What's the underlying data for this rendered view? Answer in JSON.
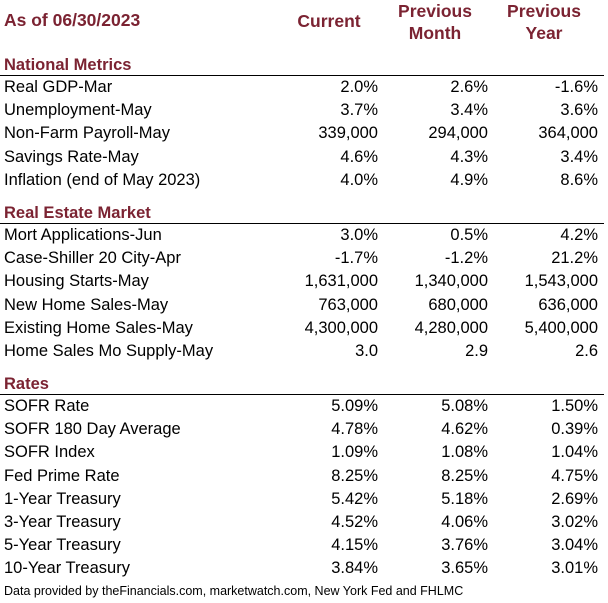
{
  "header": {
    "title": "As of 06/30/2023",
    "col_current": "Current",
    "col_prev_month": "Previous\nMonth",
    "col_prev_year": "Previous\nYear"
  },
  "sections": [
    {
      "title": "National Metrics",
      "rows": [
        {
          "label": "Real GDP-Mar",
          "current": "2.0%",
          "prev_month": "2.6%",
          "prev_year": "-1.6%"
        },
        {
          "label": "Unemployment-May",
          "current": "3.7%",
          "prev_month": "3.4%",
          "prev_year": "3.6%"
        },
        {
          "label": "Non-Farm Payroll-May",
          "current": "339,000",
          "prev_month": "294,000",
          "prev_year": "364,000"
        },
        {
          "label": "Savings Rate-May",
          "current": "4.6%",
          "prev_month": "4.3%",
          "prev_year": "3.4%"
        },
        {
          "label": "Inflation (end of May 2023)",
          "current": "4.0%",
          "prev_month": "4.9%",
          "prev_year": "8.6%"
        }
      ]
    },
    {
      "title": "Real Estate Market",
      "rows": [
        {
          "label": "Mort Applications-Jun",
          "current": "3.0%",
          "prev_month": "0.5%",
          "prev_year": "4.2%"
        },
        {
          "label": "Case-Shiller 20 City-Apr",
          "current": "-1.7%",
          "prev_month": "-1.2%",
          "prev_year": "21.2%"
        },
        {
          "label": "Housing Starts-May",
          "current": "1,631,000",
          "prev_month": "1,340,000",
          "prev_year": "1,543,000"
        },
        {
          "label": "New Home Sales-May",
          "current": "763,000",
          "prev_month": "680,000",
          "prev_year": "636,000"
        },
        {
          "label": "Existing Home Sales-May",
          "current": "4,300,000",
          "prev_month": "4,280,000",
          "prev_year": "5,400,000"
        },
        {
          "label": "Home Sales Mo Supply-May",
          "current": "3.0",
          "prev_month": "2.9",
          "prev_year": "2.6"
        }
      ]
    },
    {
      "title": "Rates",
      "rows": [
        {
          "label": "SOFR Rate",
          "current": "5.09%",
          "prev_month": "5.08%",
          "prev_year": "1.50%"
        },
        {
          "label": "SOFR 180 Day Average",
          "current": "4.78%",
          "prev_month": "4.62%",
          "prev_year": "0.39%"
        },
        {
          "label": "SOFR Index",
          "current": "1.09%",
          "prev_month": "1.08%",
          "prev_year": "1.04%"
        },
        {
          "label": "Fed Prime Rate",
          "current": "8.25%",
          "prev_month": "8.25%",
          "prev_year": "4.75%"
        },
        {
          "label": "1-Year Treasury",
          "current": "5.42%",
          "prev_month": "5.18%",
          "prev_year": "2.69%"
        },
        {
          "label": "3-Year Treasury",
          "current": "4.52%",
          "prev_month": "4.06%",
          "prev_year": "3.02%"
        },
        {
          "label": "5-Year Treasury",
          "current": "4.15%",
          "prev_month": "3.76%",
          "prev_year": "3.04%"
        },
        {
          "label": "10-Year Treasury",
          "current": "3.84%",
          "prev_month": "3.65%",
          "prev_year": "3.01%"
        }
      ]
    }
  ],
  "footer": "Data provided by theFinancials.com, marketwatch.com, New York Fed and FHLMC"
}
